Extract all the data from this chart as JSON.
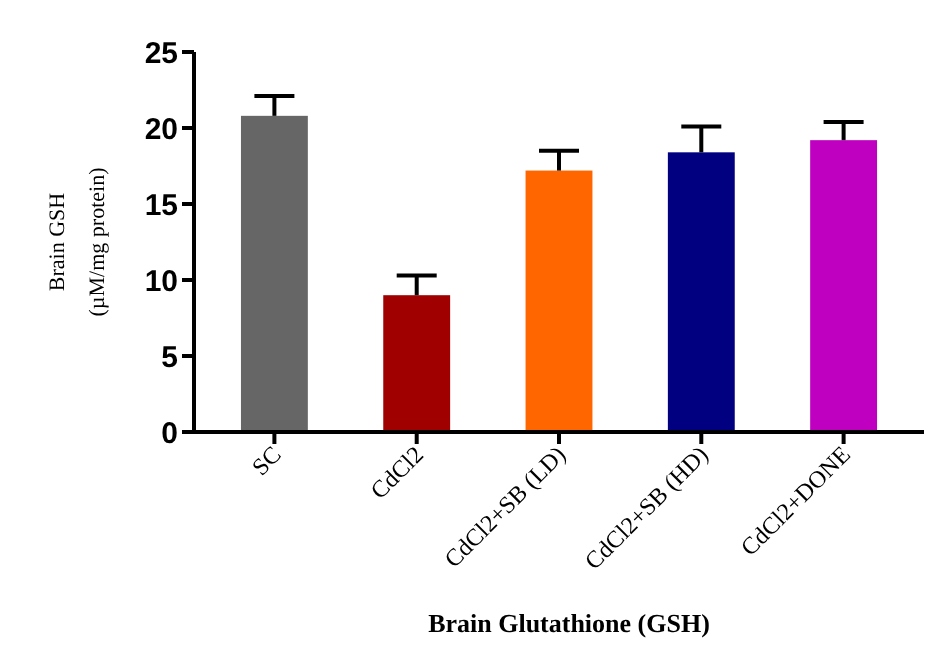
{
  "chart_data": {
    "type": "bar",
    "xlabel": "Brain Glutathione (GSH)",
    "ylabel": "Brain GSH\n(µM/mg protein)",
    "categories": [
      "SC",
      "CdCl2",
      "CdCl2+SB (LD)",
      "CdCl2+SB (HD)",
      "CdCl2+DONE"
    ],
    "values": [
      20.8,
      9.0,
      17.2,
      18.4,
      19.2
    ],
    "errors": [
      1.3,
      1.3,
      1.3,
      1.7,
      1.2
    ],
    "colors": [
      "#666666",
      "#a00000",
      "#ff6600",
      "#000080",
      "#c000c0"
    ],
    "ylim": [
      0,
      25
    ],
    "yticks": [
      0,
      5,
      10,
      15,
      20,
      25
    ],
    "grid": false
  }
}
